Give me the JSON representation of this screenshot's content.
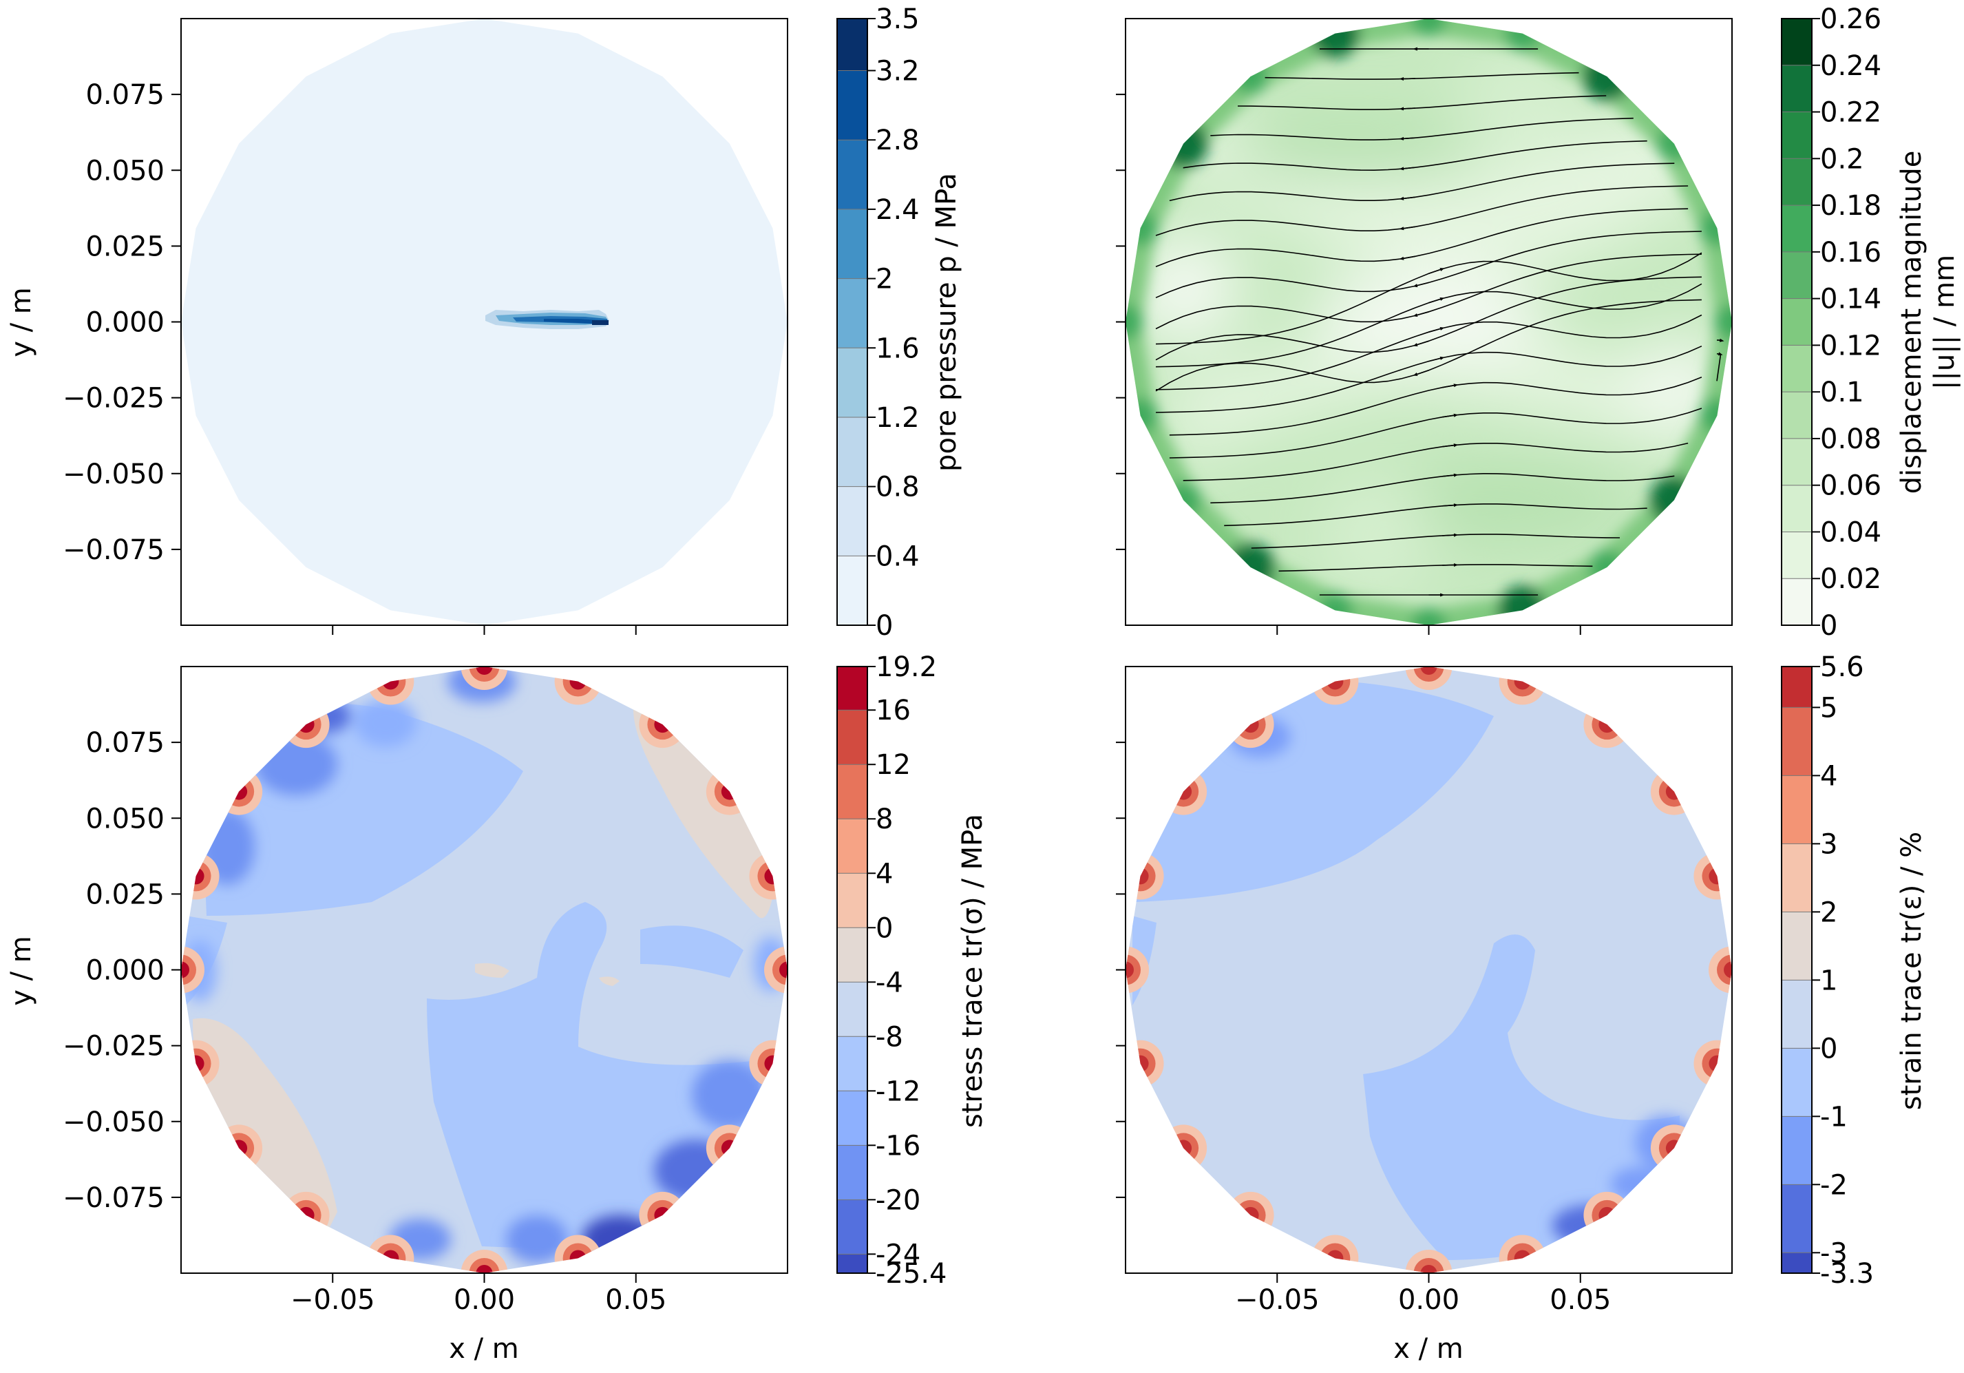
{
  "chart_data": [
    {
      "type": "heatmap",
      "panel": "top-left",
      "field": "pore pressure",
      "ylabel": "y / m",
      "xlabel": "",
      "xlim": [
        -0.1,
        0.1
      ],
      "ylim": [
        -0.1,
        0.1
      ],
      "xticks": [
        -0.05,
        0.0,
        0.05
      ],
      "xtick_labels": [],
      "yticks": [
        0.075,
        0.05,
        0.025,
        0.0,
        -0.025,
        -0.05,
        -0.075
      ],
      "ytick_labels": [
        "0.075",
        "0.050",
        "0.025",
        "0.000",
        "−0.025",
        "−0.050",
        "−0.075"
      ],
      "colorbar": {
        "label": "pore pressure p / MPa",
        "levels": [
          0,
          0.4,
          0.8,
          1.2,
          1.6,
          2,
          2.4,
          2.8,
          3.2,
          3.5
        ],
        "tick_labels": [
          "3.5",
          "3.2",
          "2.8",
          "2.4",
          "2",
          "1.6",
          "1.2",
          "0.8",
          "0.4",
          "0"
        ],
        "colors": [
          "#eaf3fb",
          "#d7e6f5",
          "#bdd7ec",
          "#9ecae1",
          "#6baed6",
          "#4292c6",
          "#2171b5",
          "#08519c",
          "#08306b"
        ]
      },
      "regions": [
        {
          "value": 0.1,
          "description": "background",
          "x": [
            -0.1,
            0.1
          ],
          "y": [
            -0.1,
            0.1
          ]
        },
        {
          "value": 2.6,
          "description": "pressurized slit",
          "x": [
            0.0,
            0.04
          ],
          "y": [
            -0.003,
            0.003
          ]
        }
      ]
    },
    {
      "type": "heatmap",
      "panel": "top-right",
      "field": "displacement magnitude",
      "xlabel": "",
      "ylabel": "",
      "xlim": [
        -0.1,
        0.1
      ],
      "ylim": [
        -0.1,
        0.1
      ],
      "xticks": [
        -0.05,
        0.0,
        0.05
      ],
      "yticks": [
        0.075,
        0.05,
        0.025,
        0.0,
        -0.025,
        -0.05,
        -0.075
      ],
      "streamlines": true,
      "colorbar": {
        "label_line1": "displacement magnitude",
        "label_line2": "||u|| / mm",
        "levels": [
          0,
          0.02,
          0.04,
          0.06,
          0.08,
          0.1,
          0.12,
          0.14,
          0.16,
          0.18,
          0.2,
          0.22,
          0.24,
          0.26
        ],
        "tick_labels": [
          "0.26",
          "0.24",
          "0.22",
          "0.2",
          "0.18",
          "0.16",
          "0.14",
          "0.12",
          "0.1",
          "0.08",
          "0.06",
          "0.04",
          "0.02",
          "0"
        ],
        "colors": [
          "#f3f9f1",
          "#e5f5e0",
          "#d5efcf",
          "#c7e9c0",
          "#b4e0ad",
          "#a1d99b",
          "#7fc97f",
          "#5bb46b",
          "#41ab5d",
          "#2f944c",
          "#238b45",
          "#11733a",
          "#00441b"
        ]
      }
    },
    {
      "type": "heatmap",
      "panel": "bottom-left",
      "field": "stress trace",
      "xlabel": "x / m",
      "ylabel": "y / m",
      "xlim": [
        -0.1,
        0.1
      ],
      "ylim": [
        -0.1,
        0.1
      ],
      "xticks": [
        -0.05,
        0.0,
        0.05
      ],
      "xtick_labels": [
        "−0.05",
        "0.00",
        "0.05"
      ],
      "yticks": [
        0.075,
        0.05,
        0.025,
        0.0,
        -0.025,
        -0.05,
        -0.075
      ],
      "ytick_labels": [
        "0.075",
        "0.050",
        "0.025",
        "0.000",
        "−0.025",
        "−0.050",
        "−0.075"
      ],
      "colorbar": {
        "label": "stress trace tr(σ) / MPa",
        "levels": [
          -25.4,
          -24,
          -20,
          -16,
          -12,
          -8,
          -4,
          0,
          4,
          8,
          12,
          16,
          19.2
        ],
        "tick_labels": [
          "19.2",
          "16",
          "12",
          "8",
          "4",
          "0",
          "-4",
          "-8",
          "-12",
          "-16",
          "-20",
          "-24",
          "-25.4"
        ],
        "colors": [
          "#3b4cc0",
          "#5470de",
          "#7093f3",
          "#8db0fe",
          "#aac7fd",
          "#c9d8f0",
          "#e3d9d3",
          "#f5c4ad",
          "#f6a385",
          "#e7745b",
          "#d24b40",
          "#b40426"
        ]
      }
    },
    {
      "type": "heatmap",
      "panel": "bottom-right",
      "field": "strain trace",
      "xlabel": "x / m",
      "ylabel": "",
      "xlim": [
        -0.1,
        0.1
      ],
      "ylim": [
        -0.1,
        0.1
      ],
      "xticks": [
        -0.05,
        0.0,
        0.05
      ],
      "xtick_labels": [
        "−0.05",
        "0.00",
        "0.05"
      ],
      "yticks": [
        0.075,
        0.05,
        0.025,
        0.0,
        -0.025,
        -0.05,
        -0.075
      ],
      "colorbar": {
        "label": "strain trace tr(ε) / %",
        "levels": [
          -3.3,
          -3,
          -2,
          -1,
          0,
          1,
          2,
          3,
          4,
          5,
          5.6
        ],
        "tick_labels": [
          "5.6",
          "5",
          "4",
          "3",
          "2",
          "1",
          "0",
          "-1",
          "-2",
          "-3",
          "-3.3"
        ],
        "colors": [
          "#3b4cc0",
          "#5470de",
          "#7b9ff9",
          "#aac7fd",
          "#c9d8f0",
          "#e3d9d3",
          "#f5c4ad",
          "#f39475",
          "#e16a55",
          "#c32e31"
        ]
      }
    }
  ]
}
